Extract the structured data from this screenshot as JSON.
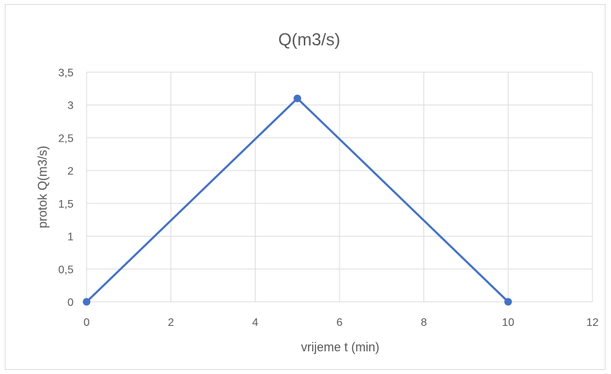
{
  "chart_data": {
    "type": "scatter",
    "title": "Q(m3/s)",
    "xlabel": "vrijeme t (min)",
    "ylabel": "protok Q(m3/s)",
    "xlim": [
      0,
      12
    ],
    "ylim": [
      0,
      3.5
    ],
    "x_ticks": [
      "0",
      "2",
      "4",
      "6",
      "8",
      "10",
      "12"
    ],
    "y_ticks": [
      "0",
      "0,5",
      "1",
      "1,5",
      "2",
      "2,5",
      "3",
      "3,5"
    ],
    "grid": true,
    "legend": "none",
    "series": [
      {
        "points": [
          [
            0,
            0
          ],
          [
            5,
            3.1
          ],
          [
            10,
            0
          ]
        ],
        "color": "#4472c4",
        "line": "straight",
        "markers": "circle"
      }
    ]
  }
}
